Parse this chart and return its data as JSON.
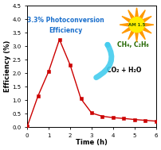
{
  "x": [
    0,
    0.5,
    1.0,
    1.5,
    2.0,
    2.5,
    3.0,
    3.5,
    4.0,
    4.5,
    5.0,
    5.5,
    6.0
  ],
  "y": [
    0.02,
    1.15,
    2.07,
    3.25,
    2.3,
    1.05,
    0.52,
    0.4,
    0.35,
    0.32,
    0.28,
    0.25,
    0.22
  ],
  "line_color": "#cc0000",
  "marker": "s",
  "marker_size": 2.5,
  "xlabel": "Time (h)",
  "ylabel": "Efficiency (%)",
  "xlim": [
    0,
    6
  ],
  "ylim": [
    0,
    4.5
  ],
  "yticks": [
    0.0,
    0.5,
    1.0,
    1.5,
    2.0,
    2.5,
    3.0,
    3.5,
    4.0,
    4.5
  ],
  "xticks": [
    0,
    1,
    2,
    3,
    4,
    5,
    6
  ],
  "annotation_text": "3.3% Photoconversion\nEfficiency",
  "annotation_color": "#1a6fcc",
  "product1_text": "CH₄, C₂H₆",
  "product1_color": "#226600",
  "product2_text": "CO₂ + H₂O",
  "product2_color": "#000000",
  "sun_label": "AM 1.5",
  "sun_label_color": "#335500",
  "sun_color": "#ffee00",
  "sun_ray_color": "#ff9900",
  "arrow_color": "#44ccee",
  "background_color": "#ffffff"
}
